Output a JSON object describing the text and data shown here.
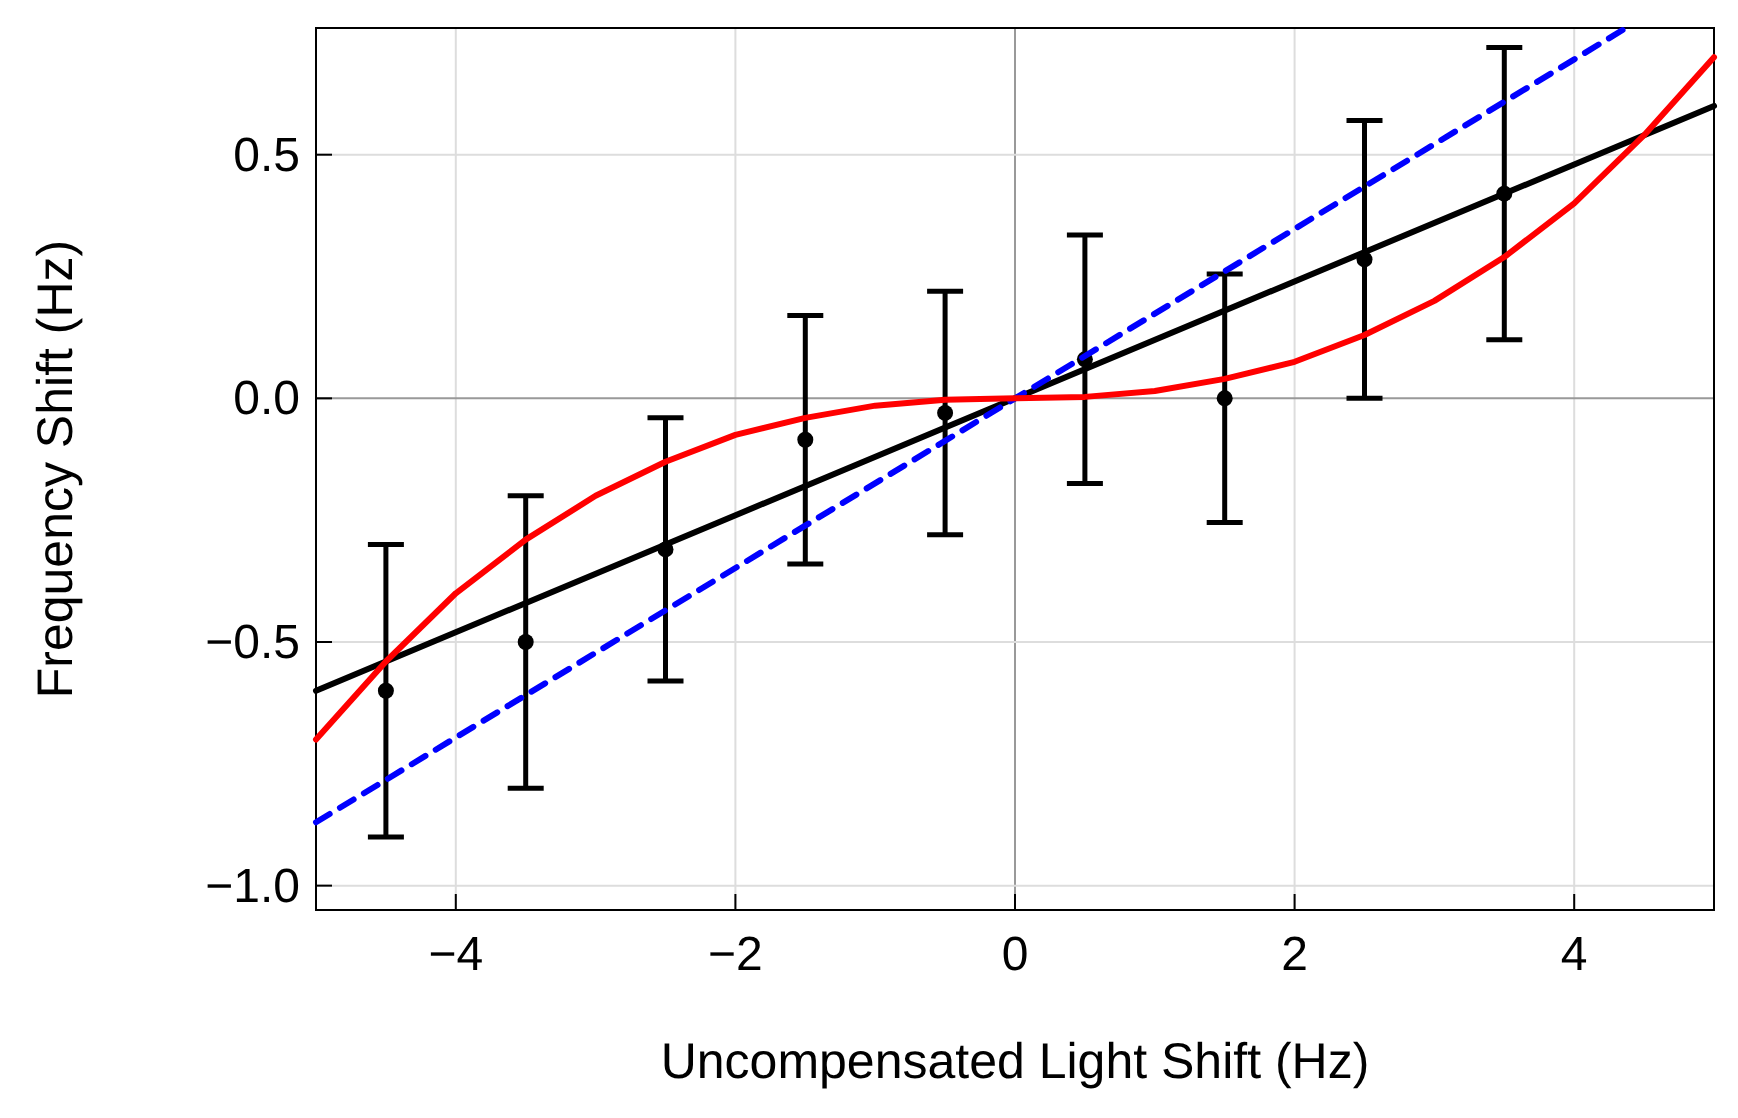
{
  "chart_data": {
    "type": "scatter",
    "xlabel": "Uncompensated Light Shift (Hz)",
    "ylabel": "Frequency Shift (Hz)",
    "xlim": [
      -5,
      5
    ],
    "ylim": [
      -1.05,
      0.76
    ],
    "xticks": [
      {
        "value": -4,
        "label": "−4"
      },
      {
        "value": -2,
        "label": "−2"
      },
      0,
      2,
      4
    ],
    "yticks": [
      {
        "value": -1,
        "label": "−1.0"
      },
      {
        "value": -0.5,
        "label": "−0.5"
      },
      {
        "value": 0,
        "label": "0.0"
      },
      {
        "value": 0.5,
        "label": "0.5"
      }
    ],
    "grid": true,
    "series": [
      {
        "color": "#000000",
        "marker": "circle",
        "x": [
          -4.5,
          -3.5,
          -2.5,
          -1.5,
          -0.5,
          0.5,
          1.5,
          2.5,
          3.5
        ],
        "values": [
          -0.6,
          -0.5,
          -0.31,
          -0.085,
          -0.03,
          0.08,
          0.0,
          0.285,
          0.42
        ],
        "errors": [
          0.3,
          0.3,
          0.27,
          0.255,
          0.25,
          0.255,
          0.255,
          0.285,
          0.3
        ]
      },
      {
        "type": "line",
        "color": "#000000",
        "line_style": "solid",
        "x": [
          -5,
          5
        ],
        "values": [
          -0.6,
          0.6
        ]
      },
      {
        "type": "line",
        "color": "#0000ff",
        "line_style": "dashed",
        "x": [
          -5,
          4.37
        ],
        "values": [
          -0.87,
          0.76
        ]
      },
      {
        "type": "line",
        "color": "#ff0000",
        "line_style": "solid",
        "x": [
          -5,
          -4.5,
          -4,
          -3.5,
          -3,
          -2.5,
          -2,
          -1.5,
          -1,
          -0.5,
          0,
          0.5,
          1,
          1.5,
          2,
          2.5,
          3,
          3.5,
          4,
          4.5,
          5
        ],
        "values": [
          -0.7,
          -0.54,
          -0.4,
          -0.29,
          -0.2,
          -0.13,
          -0.075,
          -0.04,
          -0.015,
          -0.003,
          0,
          0.003,
          0.015,
          0.04,
          0.075,
          0.13,
          0.2,
          0.29,
          0.4,
          0.54,
          0.7
        ]
      }
    ]
  }
}
